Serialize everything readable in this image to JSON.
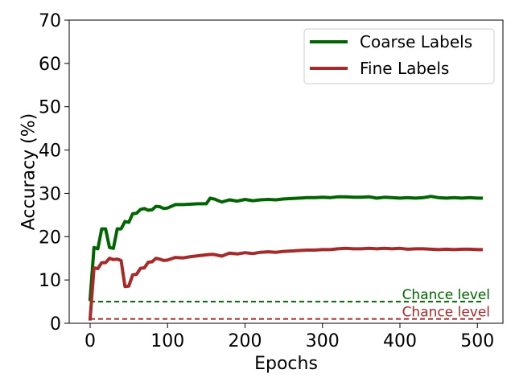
{
  "chart_data": {
    "type": "line",
    "xlabel": "Epochs",
    "ylabel": "Accuracy (%)",
    "xlim": [
      -27,
      533
    ],
    "ylim": [
      0,
      70
    ],
    "x_ticks": [
      0,
      100,
      200,
      300,
      400,
      500
    ],
    "y_ticks": [
      0,
      10,
      20,
      30,
      40,
      50,
      60,
      70
    ],
    "grid": false,
    "legend_position": "top-right",
    "x": [
      0,
      5,
      10,
      15,
      20,
      25,
      30,
      35,
      40,
      45,
      50,
      55,
      60,
      65,
      70,
      75,
      80,
      85,
      90,
      95,
      100,
      110,
      120,
      130,
      140,
      150,
      155,
      160,
      170,
      180,
      190,
      200,
      210,
      220,
      230,
      240,
      250,
      260,
      270,
      280,
      290,
      300,
      310,
      320,
      330,
      340,
      350,
      360,
      370,
      380,
      390,
      400,
      410,
      420,
      430,
      440,
      450,
      460,
      470,
      480,
      490,
      500,
      505
    ],
    "series": [
      {
        "name": "Coarse Labels",
        "color": "#006400",
        "values": [
          5.5,
          17.5,
          17.2,
          21.8,
          21.8,
          17.5,
          17.3,
          21.8,
          21.8,
          23.5,
          23.3,
          25.3,
          25.4,
          26.3,
          26.5,
          26.1,
          26.2,
          27.0,
          26.9,
          26.5,
          26.6,
          27.4,
          27.4,
          27.5,
          27.6,
          27.6,
          28.9,
          28.7,
          28.0,
          28.5,
          28.2,
          28.6,
          28.3,
          28.5,
          28.6,
          28.5,
          28.7,
          28.8,
          28.9,
          29.0,
          29.0,
          29.1,
          29.0,
          29.2,
          29.2,
          29.1,
          29.1,
          29.2,
          28.9,
          29.1,
          29.0,
          28.9,
          29.0,
          28.9,
          29.0,
          29.3,
          29.0,
          28.9,
          29.0,
          28.9,
          29.0,
          28.9,
          28.9
        ]
      },
      {
        "name": "Fine Labels",
        "color": "#A52A2A",
        "values": [
          1.0,
          12.8,
          12.6,
          14.0,
          14.0,
          15.0,
          14.7,
          14.8,
          14.5,
          8.5,
          8.6,
          11.2,
          11.3,
          12.7,
          12.8,
          14.1,
          14.2,
          15.0,
          14.8,
          14.5,
          14.6,
          15.2,
          15.1,
          15.4,
          15.6,
          15.8,
          15.9,
          15.9,
          15.5,
          16.2,
          16.0,
          16.3,
          16.1,
          16.4,
          16.5,
          16.4,
          16.6,
          16.7,
          16.8,
          16.9,
          16.9,
          17.0,
          17.0,
          17.2,
          17.3,
          17.2,
          17.2,
          17.3,
          17.2,
          17.3,
          17.2,
          17.3,
          17.1,
          17.2,
          17.2,
          17.1,
          17.0,
          17.1,
          17.0,
          17.1,
          17.1,
          17.0,
          17.0
        ]
      }
    ],
    "reference_lines": [
      {
        "label": "Chance level",
        "value": 5.0,
        "color": "#006400",
        "style": "dashed"
      },
      {
        "label": "Chance level",
        "value": 1.0,
        "color": "#A52A2A",
        "style": "dashed"
      }
    ]
  }
}
